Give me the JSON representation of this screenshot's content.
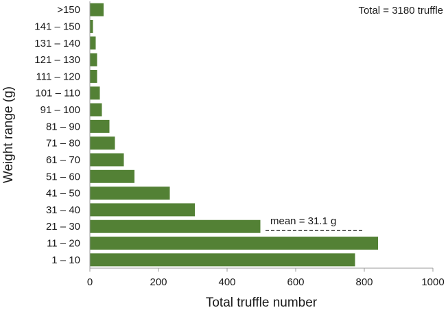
{
  "chart_data": {
    "type": "bar",
    "orientation": "horizontal",
    "categories": [
      "1 – 10",
      "11 – 20",
      "21 – 30",
      "31 – 40",
      "41 – 50",
      "51 – 60",
      "61 – 70",
      "71 – 80",
      "81 – 90",
      "91 – 100",
      "101 – 110",
      "111 – 120",
      "121 – 130",
      "131 – 140",
      "141 – 150",
      ">150"
    ],
    "values": [
      773,
      840,
      497,
      306,
      233,
      130,
      99,
      73,
      57,
      35,
      29,
      21,
      21,
      17,
      9,
      40
    ],
    "xlabel": "Total truffle number",
    "ylabel": "Weight range (g)",
    "xlim": [
      0,
      1000
    ],
    "xticks": [
      0,
      200,
      400,
      600,
      800,
      1000
    ],
    "grid": false,
    "bar_color": "#538135",
    "annotations": {
      "total": "Total = 3180 truffle",
      "mean": "mean = 31.1 g"
    },
    "mean_line_x_range": [
      500,
      800
    ]
  }
}
